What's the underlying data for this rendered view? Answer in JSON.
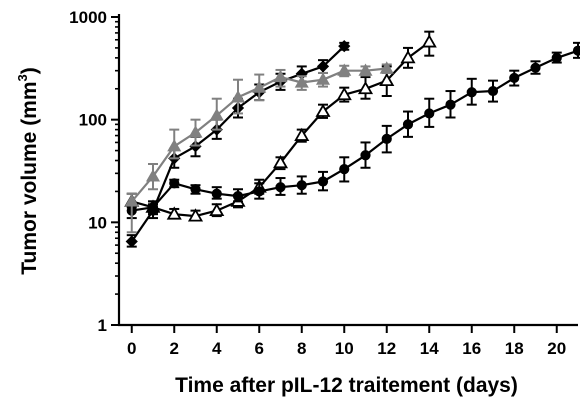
{
  "chart_data": {
    "type": "line",
    "title": "",
    "xlabel": "Time after pIL-12 traitement (days)",
    "ylabel": "Tumor volume (mm3)",
    "ylabel_parts": {
      "main": "Tumor volume (mm",
      "sup": "3",
      "end": ")"
    },
    "xlim": [
      -0.6,
      21
    ],
    "ylim": [
      1,
      1000
    ],
    "y_scale": "log",
    "grid": false,
    "legend": "none",
    "x_ticks": [
      0,
      2,
      4,
      6,
      8,
      10,
      12,
      14,
      16,
      18,
      20
    ],
    "x_tick_labels": [
      "0",
      "2",
      "4",
      "6",
      "8",
      "10",
      "12",
      "14",
      "16",
      "18",
      "20"
    ],
    "y_ticks": [
      1,
      10,
      100,
      1000
    ],
    "y_tick_labels": [
      "1",
      "10",
      "100",
      "1000"
    ],
    "series": [
      {
        "marker": "triangle-open",
        "color": "#000000",
        "x": [
          0,
          1,
          2,
          3,
          4,
          5,
          6,
          7,
          8,
          9,
          10,
          11,
          12,
          13,
          14
        ],
        "values": [
          16,
          14,
          12,
          11.5,
          13,
          16,
          22,
          38,
          70,
          120,
          175,
          200,
          240,
          400,
          570
        ],
        "err_upper": [
          19,
          16,
          13.5,
          13,
          15,
          18.5,
          26,
          43,
          80,
          140,
          205,
          260,
          330,
          500,
          720
        ],
        "err_lower": [
          14,
          12.5,
          11,
          10.5,
          11.5,
          14,
          19,
          33,
          61,
          104,
          150,
          160,
          170,
          320,
          420
        ]
      },
      {
        "marker": "circle",
        "color": "#000000",
        "x": [
          0,
          1,
          2,
          3,
          4,
          5,
          6,
          7,
          8,
          9,
          10,
          11,
          12,
          13,
          14,
          15,
          16,
          17,
          18,
          19,
          20,
          21
        ],
        "values": [
          13,
          14,
          24,
          21,
          19,
          18,
          20,
          22,
          23,
          25,
          33,
          45,
          65,
          90,
          115,
          140,
          185,
          190,
          255,
          320,
          400,
          470
        ],
        "err_upper": [
          15,
          16,
          26,
          23,
          22,
          21,
          24,
          27,
          28,
          31,
          43,
          60,
          87,
          120,
          160,
          190,
          250,
          240,
          300,
          370,
          450,
          560
        ],
        "err_lower": [
          11,
          12,
          22,
          19,
          17,
          16,
          17,
          18.5,
          19,
          20.5,
          25,
          34,
          48,
          68,
          85,
          105,
          140,
          150,
          215,
          280,
          360,
          400
        ]
      },
      {
        "marker": "diamond",
        "color": "#000000",
        "x": [
          0,
          1,
          2,
          3,
          4,
          5,
          6,
          7,
          8,
          9,
          10
        ],
        "values": [
          6.5,
          13,
          42,
          55,
          80,
          130,
          185,
          235,
          280,
          330,
          520
        ],
        "err_upper": [
          7.5,
          15,
          52,
          68,
          100,
          160,
          220,
          280,
          330,
          380,
          560
        ],
        "err_lower": [
          5.8,
          11,
          34,
          44,
          65,
          105,
          155,
          195,
          235,
          285,
          480
        ]
      },
      {
        "marker": "triangle",
        "color": "#808080",
        "x": [
          0,
          1,
          2,
          3,
          4,
          5,
          6,
          7,
          8,
          9,
          10,
          11,
          12
        ],
        "values": [
          16,
          28,
          55,
          75,
          110,
          165,
          205,
          260,
          230,
          245,
          300,
          300,
          315
        ],
        "err_upper": [
          19,
          37,
          80,
          100,
          160,
          245,
          275,
          305,
          265,
          285,
          335,
          330,
          345
        ],
        "err_lower": [
          8,
          21,
          42,
          56,
          80,
          115,
          155,
          210,
          195,
          210,
          265,
          270,
          285
        ]
      }
    ]
  }
}
